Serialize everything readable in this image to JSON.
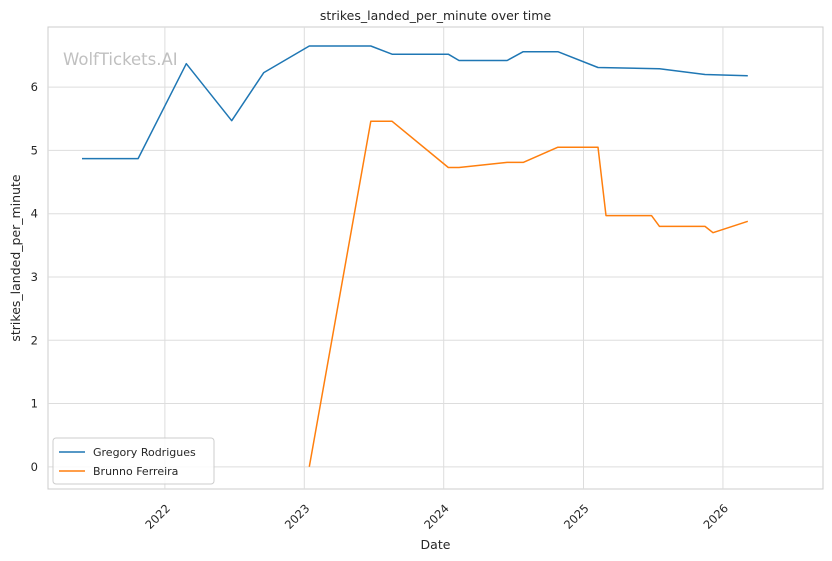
{
  "chart_data": {
    "type": "line",
    "title": "strikes_landed_per_minute over time",
    "xlabel": "Date",
    "ylabel": "strikes_landed_per_minute",
    "watermark": "WolfTickets.AI",
    "xlim": [
      "2021-03-01",
      "2026-09-20"
    ],
    "ylim": [
      -0.35,
      6.95
    ],
    "x_ticks": [
      "2022",
      "2023",
      "2024",
      "2025",
      "2026"
    ],
    "y_ticks": [
      "0",
      "1",
      "2",
      "3",
      "4",
      "5",
      "6"
    ],
    "grid": true,
    "legend_placement": "bottom-left",
    "series": [
      {
        "name": "Gregory Rodrigues",
        "color": "#1f77b4",
        "points": [
          {
            "x": "2021-05-29",
            "y": 4.87
          },
          {
            "x": "2021-10-23",
            "y": 4.87
          },
          {
            "x": "2022-02-26",
            "y": 6.37
          },
          {
            "x": "2022-06-25",
            "y": 5.47
          },
          {
            "x": "2022-09-17",
            "y": 6.23
          },
          {
            "x": "2023-01-14",
            "y": 6.65
          },
          {
            "x": "2023-06-24",
            "y": 6.65
          },
          {
            "x": "2023-08-19",
            "y": 6.52
          },
          {
            "x": "2024-01-13",
            "y": 6.52
          },
          {
            "x": "2024-02-10",
            "y": 6.42
          },
          {
            "x": "2024-06-15",
            "y": 6.42
          },
          {
            "x": "2024-07-27",
            "y": 6.56
          },
          {
            "x": "2024-10-26",
            "y": 6.56
          },
          {
            "x": "2025-02-08",
            "y": 6.31
          },
          {
            "x": "2025-07-19",
            "y": 6.29
          },
          {
            "x": "2025-11-15",
            "y": 6.2
          },
          {
            "x": "2026-03-07",
            "y": 6.18
          }
        ]
      },
      {
        "name": "Brunno Ferreira",
        "color": "#ff7f0e",
        "points": [
          {
            "x": "2023-01-14",
            "y": 0.0
          },
          {
            "x": "2023-06-24",
            "y": 5.46
          },
          {
            "x": "2023-08-19",
            "y": 5.46
          },
          {
            "x": "2024-01-13",
            "y": 4.73
          },
          {
            "x": "2024-02-10",
            "y": 4.73
          },
          {
            "x": "2024-06-15",
            "y": 4.81
          },
          {
            "x": "2024-07-27",
            "y": 4.81
          },
          {
            "x": "2024-10-26",
            "y": 5.05
          },
          {
            "x": "2025-02-08",
            "y": 5.05
          },
          {
            "x": "2025-03-01",
            "y": 3.97
          },
          {
            "x": "2025-06-28",
            "y": 3.97
          },
          {
            "x": "2025-07-19",
            "y": 3.8
          },
          {
            "x": "2025-11-15",
            "y": 3.8
          },
          {
            "x": "2025-12-06",
            "y": 3.7
          },
          {
            "x": "2026-03-07",
            "y": 3.88
          }
        ]
      }
    ]
  }
}
